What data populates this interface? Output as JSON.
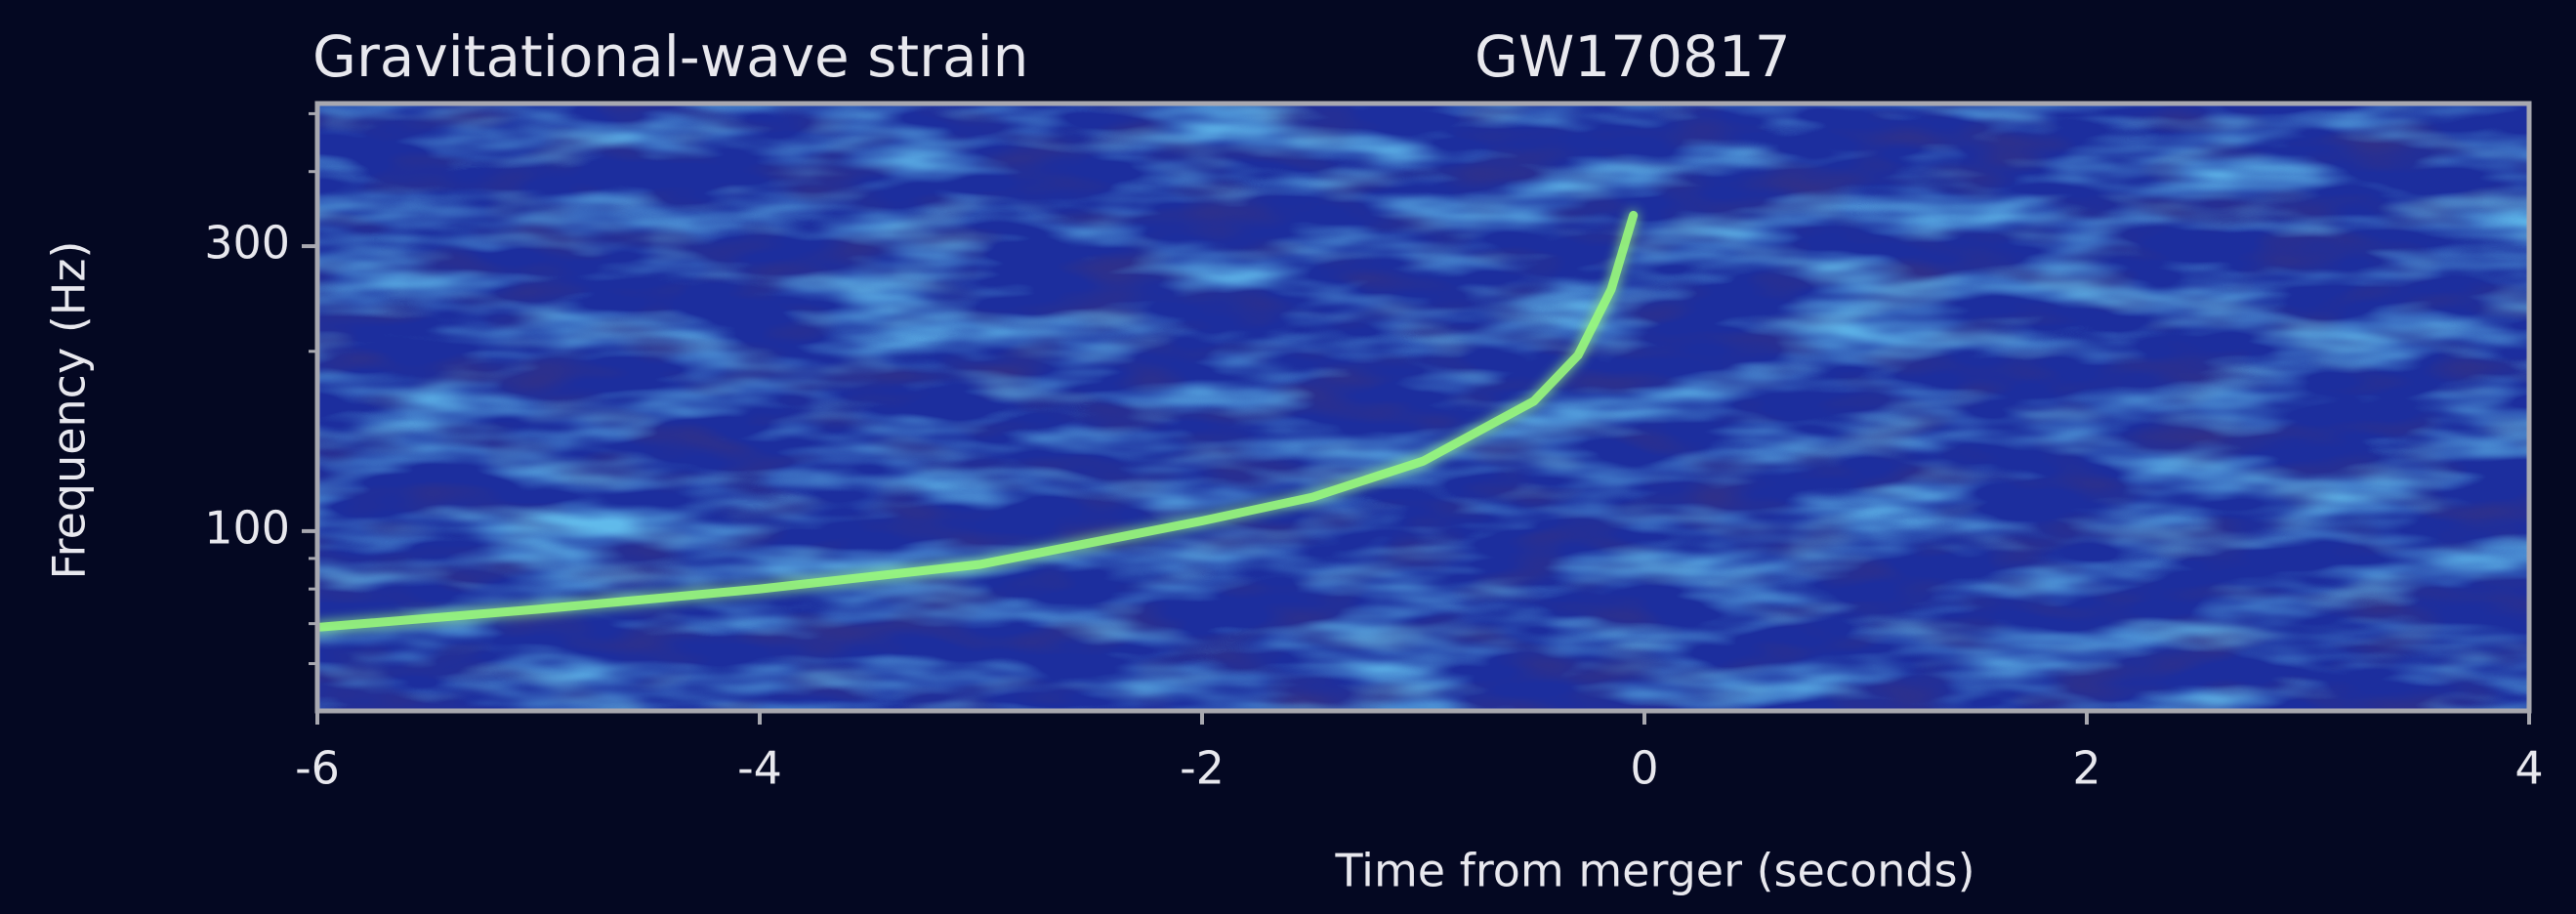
{
  "chart_data": {
    "type": "spectrogram",
    "title": "Gravitational-wave strain",
    "subtitle": "GW170817",
    "x_label": "Time from merger (seconds)",
    "y_label": "Frequency (Hz)",
    "x": [
      -6,
      -5,
      -4,
      -3,
      -2,
      -1.5,
      -1,
      -0.5,
      -0.3,
      -0.15,
      -0.05
    ],
    "series": [
      {
        "color": "#9dff7a",
        "values": [
          69,
          74,
          80,
          88,
          104,
          114,
          131,
          165,
          197,
          254,
          338
        ]
      }
    ],
    "xlim": [
      -6,
      4
    ],
    "xticks": [
      -6,
      -4,
      -2,
      0,
      2,
      4
    ],
    "ylim": [
      50,
      520
    ],
    "yticks": [
      100,
      300
    ],
    "yminorticks": [
      60,
      70,
      80,
      90,
      200,
      400,
      500
    ],
    "ylog": true
  }
}
